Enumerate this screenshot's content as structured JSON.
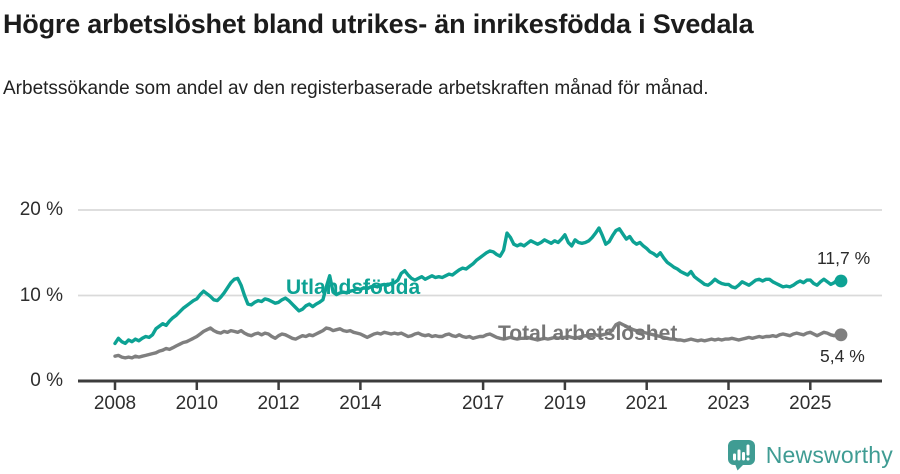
{
  "header": {
    "title": "Högre arbetslöshet bland utrikes- än inrikesfödda i Svedala",
    "subtitle": "Arbetssökande som andel av den registerbaserade arbetskraften månad för månad."
  },
  "colors": {
    "accent_teal": "#0da294",
    "series_gray": "#7f7f7f",
    "logo_teal": "#3f9c93",
    "grid": "#dadada",
    "axis": "#3c3c3c",
    "text": "#2e2e2e"
  },
  "chart_data": {
    "type": "line",
    "title": "Högre arbetslöshet bland utrikes- än inrikesfödda i Svedala",
    "subtitle": "Arbetssökande som andel av den registerbaserade arbetskraften månad för månad.",
    "unit": "%",
    "x_start": {
      "year": 2008,
      "month": 1
    },
    "x_end": {
      "year": 2025,
      "month": 10
    },
    "x_frequency": "monthly",
    "ylim": [
      0,
      21.5
    ],
    "grid": "horizontal-only",
    "legend_position": "inline-labels-on-lines",
    "yticks": [
      {
        "value": 0,
        "label": "0 %"
      },
      {
        "value": 10,
        "label": "10 %"
      },
      {
        "value": 20,
        "label": "20 %"
      }
    ],
    "xticks": [
      {
        "year": 2008,
        "label": "2008"
      },
      {
        "year": 2010,
        "label": "2010"
      },
      {
        "year": 2012,
        "label": "2012"
      },
      {
        "year": 2014,
        "label": "2014"
      },
      {
        "year": 2017,
        "label": "2017"
      },
      {
        "year": 2019,
        "label": "2019"
      },
      {
        "year": 2021,
        "label": "2021"
      },
      {
        "year": 2023,
        "label": "2023"
      },
      {
        "year": 2025,
        "label": "2025"
      }
    ],
    "series": [
      {
        "name": "Utlandsfödda",
        "color": "#0da294",
        "end_label": "11,7 %",
        "end_value": 11.7,
        "values": [
          4.4,
          5.0,
          4.6,
          4.4,
          4.8,
          4.6,
          4.9,
          4.7,
          5.0,
          5.2,
          5.1,
          5.4,
          6.1,
          6.4,
          6.7,
          6.5,
          7.0,
          7.4,
          7.7,
          8.1,
          8.5,
          8.8,
          9.1,
          9.4,
          9.6,
          10.1,
          10.5,
          10.2,
          9.9,
          9.5,
          9.4,
          9.8,
          10.3,
          10.9,
          11.5,
          11.9,
          12.0,
          11.2,
          10.0,
          9.0,
          8.9,
          9.2,
          9.4,
          9.3,
          9.6,
          9.5,
          9.3,
          9.1,
          9.2,
          9.5,
          9.7,
          9.4,
          9.0,
          8.6,
          8.2,
          8.4,
          8.8,
          9.0,
          8.7,
          9.0,
          9.2,
          9.5,
          11.0,
          12.3,
          10.4,
          10.1,
          10.3,
          10.4,
          10.3,
          10.5,
          10.6,
          10.8,
          10.7,
          10.9,
          10.8,
          11.0,
          11.1,
          11.0,
          11.2,
          11.3,
          11.2,
          11.4,
          11.5,
          11.8,
          12.6,
          12.9,
          12.4,
          12.0,
          11.8,
          12.0,
          12.2,
          11.9,
          12.1,
          12.3,
          12.1,
          12.2,
          12.1,
          12.3,
          12.5,
          12.4,
          12.7,
          13.0,
          13.2,
          13.1,
          13.4,
          13.7,
          14.1,
          14.4,
          14.7,
          15.0,
          15.2,
          15.1,
          14.8,
          14.6,
          15.3,
          17.3,
          16.8,
          16.0,
          15.8,
          16.0,
          15.8,
          16.1,
          16.4,
          16.2,
          16.0,
          16.2,
          16.5,
          16.3,
          16.1,
          16.4,
          16.2,
          16.6,
          17.1,
          16.2,
          15.8,
          16.5,
          16.2,
          16.1,
          16.2,
          16.4,
          16.8,
          17.3,
          17.9,
          17.0,
          16.0,
          16.3,
          17.0,
          17.6,
          17.8,
          17.2,
          16.6,
          16.9,
          16.3,
          16.0,
          16.2,
          15.8,
          15.5,
          15.1,
          14.9,
          14.6,
          15.0,
          14.4,
          13.9,
          13.6,
          13.3,
          13.1,
          12.8,
          12.6,
          12.4,
          12.8,
          12.2,
          11.9,
          11.6,
          11.3,
          11.2,
          11.5,
          11.9,
          11.6,
          11.4,
          11.3,
          11.3,
          11.0,
          10.9,
          11.2,
          11.6,
          11.4,
          11.2,
          11.5,
          11.8,
          11.9,
          11.7,
          11.9,
          11.9,
          11.6,
          11.4,
          11.2,
          11.0,
          11.1,
          11.0,
          11.2,
          11.5,
          11.7,
          11.5,
          11.8,
          11.8,
          11.4,
          11.2,
          11.6,
          11.9,
          11.6,
          11.3,
          11.5,
          11.9,
          11.7
        ]
      },
      {
        "name": "Total arbetslöshet",
        "color": "#7f7f7f",
        "end_label": "5,4 %",
        "end_value": 5.4,
        "values": [
          2.9,
          3.0,
          2.8,
          2.7,
          2.8,
          2.7,
          2.9,
          2.8,
          2.9,
          3.0,
          3.1,
          3.2,
          3.3,
          3.5,
          3.6,
          3.8,
          3.7,
          3.9,
          4.1,
          4.3,
          4.5,
          4.6,
          4.8,
          5.0,
          5.2,
          5.5,
          5.8,
          6.0,
          6.2,
          5.9,
          5.7,
          5.6,
          5.8,
          5.7,
          5.9,
          5.8,
          5.7,
          5.9,
          5.6,
          5.4,
          5.3,
          5.5,
          5.6,
          5.4,
          5.6,
          5.5,
          5.2,
          5.0,
          5.3,
          5.5,
          5.4,
          5.2,
          5.0,
          4.9,
          5.1,
          5.3,
          5.2,
          5.4,
          5.3,
          5.5,
          5.7,
          5.9,
          6.2,
          6.1,
          5.9,
          6.0,
          6.1,
          5.9,
          5.8,
          5.9,
          5.7,
          5.6,
          5.5,
          5.3,
          5.1,
          5.3,
          5.5,
          5.6,
          5.5,
          5.7,
          5.6,
          5.5,
          5.6,
          5.5,
          5.6,
          5.4,
          5.2,
          5.3,
          5.5,
          5.6,
          5.4,
          5.3,
          5.4,
          5.2,
          5.3,
          5.2,
          5.2,
          5.4,
          5.5,
          5.3,
          5.2,
          5.4,
          5.2,
          5.1,
          5.2,
          5.0,
          5.1,
          5.2,
          5.2,
          5.4,
          5.5,
          5.3,
          5.1,
          5.0,
          4.9,
          5.0,
          5.1,
          5.0,
          4.9,
          5.0,
          5.0,
          5.1,
          5.0,
          4.9,
          4.8,
          4.9,
          5.0,
          4.9,
          5.0,
          5.1,
          5.0,
          5.1,
          5.1,
          5.2,
          5.1,
          5.0,
          5.1,
          5.2,
          5.3,
          5.2,
          5.3,
          5.4,
          5.3,
          5.4,
          5.5,
          5.6,
          6.0,
          6.6,
          6.8,
          6.6,
          6.4,
          6.2,
          6.0,
          5.9,
          5.8,
          5.7,
          5.6,
          5.5,
          5.4,
          5.3,
          5.2,
          5.1,
          5.0,
          4.9,
          4.9,
          4.8,
          4.8,
          4.7,
          4.8,
          4.9,
          4.8,
          4.7,
          4.8,
          4.7,
          4.8,
          4.9,
          4.8,
          4.9,
          4.8,
          4.9,
          4.9,
          5.0,
          4.9,
          4.8,
          4.9,
          5.0,
          5.1,
          5.0,
          5.1,
          5.2,
          5.1,
          5.2,
          5.2,
          5.3,
          5.2,
          5.4,
          5.5,
          5.4,
          5.3,
          5.5,
          5.6,
          5.5,
          5.4,
          5.6,
          5.7,
          5.5,
          5.3,
          5.5,
          5.7,
          5.6,
          5.4,
          5.3,
          5.5,
          5.4
        ]
      }
    ]
  },
  "footer": {
    "brand": "Newsworthy"
  }
}
